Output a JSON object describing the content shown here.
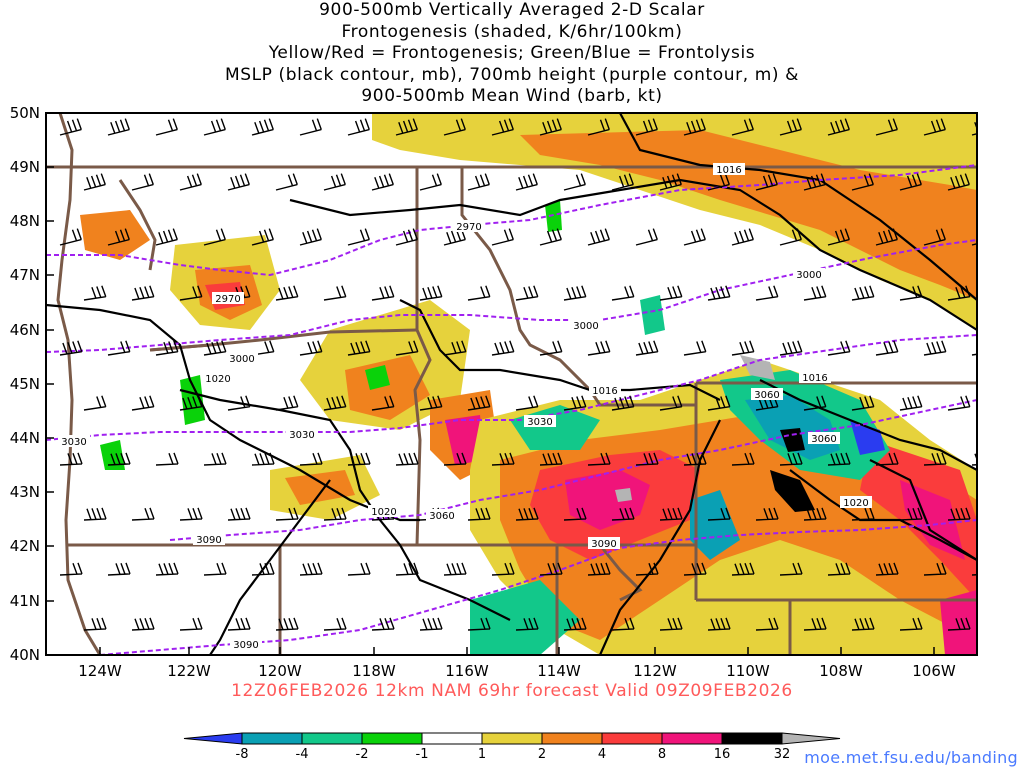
{
  "title": {
    "line1": "900-500mb Vertically Averaged 2-D Scalar",
    "line2": "Frontogenesis (shaded, K/6hr/100km)",
    "line3": "Yellow/Red = Frontogenesis;  Green/Blue = Frontolysis",
    "line4": "MSLP (black contour, mb), 700mb height (purple contour, m) &",
    "line5": "900-500mb Mean Wind (barb, kt)"
  },
  "footer": "12Z06FEB2026 12km NAM 69hr forecast Valid 09Z09FEB2026",
  "credit": "moe.met.fsu.edu/banding",
  "map": {
    "lat_labels": [
      "50N",
      "49N",
      "48N",
      "47N",
      "46N",
      "45N",
      "44N",
      "43N",
      "42N",
      "41N",
      "40N"
    ],
    "lon_labels": [
      "124W",
      "122W",
      "120W",
      "118W",
      "116W",
      "114W",
      "112W",
      "110W",
      "108W",
      "106W"
    ],
    "mslp_labels": [
      "1016",
      "1020",
      "1020",
      "1016",
      "1016",
      "1020"
    ],
    "height_labels": [
      "2970",
      "2970",
      "3000",
      "3000",
      "3000",
      "3030",
      "3030",
      "3030",
      "3060",
      "3060",
      "3060",
      "3090",
      "3090",
      "3090"
    ],
    "colors": {
      "mslp": "#000000",
      "height": "#a020f0",
      "borders": "#7a5a48",
      "footer": "#ff5a5a",
      "credit": "#4a7aff"
    }
  },
  "colorbar": {
    "labels": [
      "-8",
      "-4",
      "-2",
      "-1",
      "1",
      "2",
      "4",
      "8",
      "16",
      "32"
    ],
    "colors": [
      "#2a3cf0",
      "#0aa0b4",
      "#12c88a",
      "#0ad20a",
      "#ffffff",
      "#e6d23c",
      "#f0821e",
      "#fa3c3c",
      "#f0147a",
      "#000000",
      "#b4b4b4"
    ]
  }
}
